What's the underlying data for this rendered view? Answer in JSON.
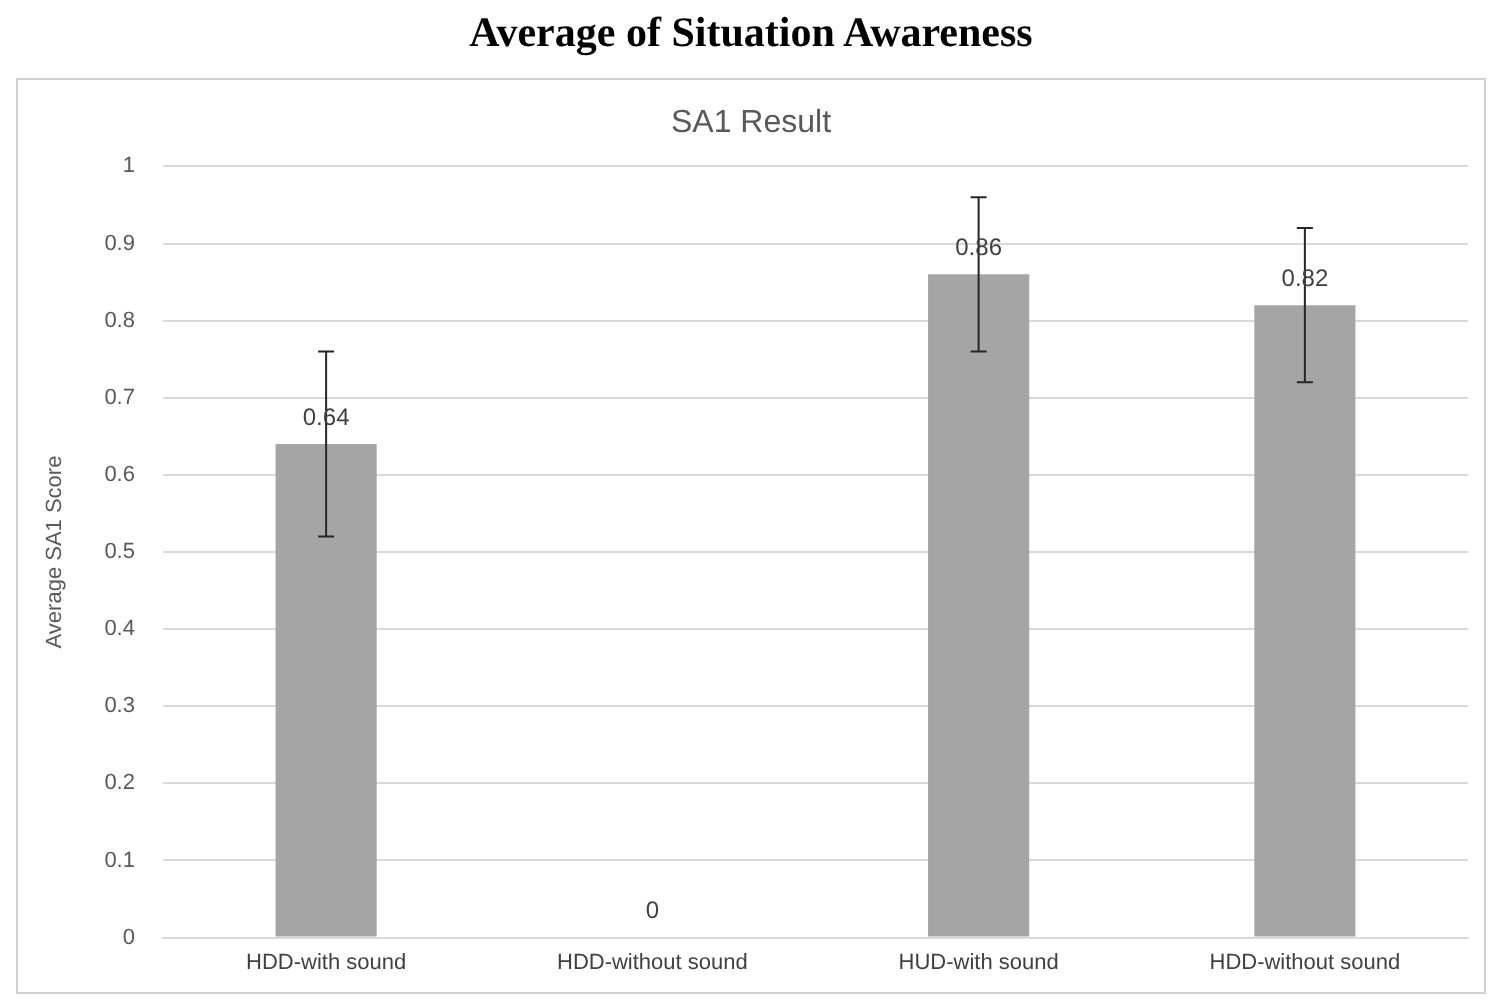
{
  "chart_data": {
    "type": "bar",
    "title": "Average of Situation Awareness",
    "subtitle": "SA1 Result",
    "ylabel": "Average SA1 Score",
    "categories": [
      "HDD-with sound",
      "HDD-without sound",
      "HUD-with sound",
      "HDD-without sound"
    ],
    "values": [
      0.64,
      0,
      0.86,
      0.82
    ],
    "errors": [
      0.12,
      null,
      0.1,
      0.1
    ],
    "color": "#a5a5a5",
    "ylim": [
      0,
      1
    ],
    "yticks": [
      0,
      0.1,
      0.2,
      0.3,
      0.4,
      0.5,
      0.6,
      0.7,
      0.8,
      0.9,
      1
    ],
    "grid": "y",
    "data_labels": true
  }
}
